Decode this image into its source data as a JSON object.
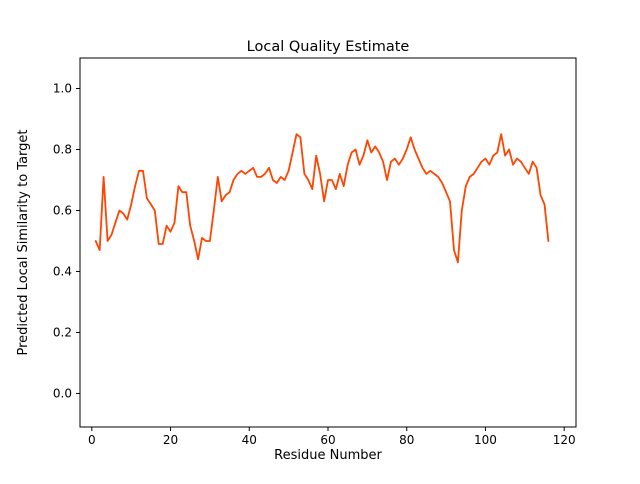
{
  "figure": {
    "background": "#ffffff"
  },
  "chart_data": {
    "type": "line",
    "title": "Local Quality Estimate",
    "xlabel": "Residue Number",
    "ylabel": "Predicted Local Similarity to Target",
    "xlim": [
      -3,
      123
    ],
    "ylim": [
      -0.11,
      1.1
    ],
    "x_ticks": [
      0,
      20,
      40,
      60,
      80,
      100,
      120
    ],
    "y_ticks": [
      0.0,
      0.2,
      0.4,
      0.6,
      0.8,
      1.0
    ],
    "grid": false,
    "legend": "none",
    "line_color": "#FF4500",
    "line_width": 1.8,
    "x": [
      1,
      2,
      3,
      4,
      5,
      6,
      7,
      8,
      9,
      10,
      11,
      12,
      13,
      14,
      15,
      16,
      17,
      18,
      19,
      20,
      21,
      22,
      23,
      24,
      25,
      26,
      27,
      28,
      29,
      30,
      31,
      32,
      33,
      34,
      35,
      36,
      37,
      38,
      39,
      40,
      41,
      42,
      43,
      44,
      45,
      46,
      47,
      48,
      49,
      50,
      51,
      52,
      53,
      54,
      55,
      56,
      57,
      58,
      59,
      60,
      61,
      62,
      63,
      64,
      65,
      66,
      67,
      68,
      69,
      70,
      71,
      72,
      73,
      74,
      75,
      76,
      77,
      78,
      79,
      80,
      81,
      82,
      83,
      84,
      85,
      86,
      87,
      88,
      89,
      90,
      91,
      92,
      93,
      94,
      95,
      96,
      97,
      98,
      99,
      100,
      101,
      102,
      103,
      104,
      105,
      106,
      107,
      108,
      109,
      110,
      111,
      112,
      113,
      114,
      115,
      116
    ],
    "y": [
      0.5,
      0.47,
      0.71,
      0.5,
      0.52,
      0.56,
      0.6,
      0.59,
      0.57,
      0.62,
      0.68,
      0.73,
      0.73,
      0.64,
      0.62,
      0.6,
      0.49,
      0.49,
      0.55,
      0.53,
      0.56,
      0.68,
      0.66,
      0.66,
      0.55,
      0.5,
      0.44,
      0.51,
      0.5,
      0.5,
      0.6,
      0.71,
      0.63,
      0.65,
      0.66,
      0.7,
      0.72,
      0.73,
      0.72,
      0.73,
      0.74,
      0.71,
      0.71,
      0.72,
      0.74,
      0.7,
      0.69,
      0.71,
      0.7,
      0.73,
      0.79,
      0.85,
      0.84,
      0.72,
      0.7,
      0.67,
      0.78,
      0.72,
      0.63,
      0.7,
      0.7,
      0.67,
      0.72,
      0.68,
      0.75,
      0.79,
      0.8,
      0.75,
      0.78,
      0.83,
      0.79,
      0.81,
      0.79,
      0.76,
      0.7,
      0.76,
      0.77,
      0.75,
      0.77,
      0.8,
      0.84,
      0.8,
      0.77,
      0.74,
      0.72,
      0.73,
      0.72,
      0.71,
      0.69,
      0.66,
      0.63,
      0.47,
      0.43,
      0.6,
      0.68,
      0.71,
      0.72,
      0.74,
      0.76,
      0.77,
      0.75,
      0.78,
      0.79,
      0.85,
      0.78,
      0.8,
      0.75,
      0.77,
      0.76,
      0.74,
      0.72,
      0.76,
      0.74,
      0.65,
      0.62,
      0.5
    ]
  }
}
